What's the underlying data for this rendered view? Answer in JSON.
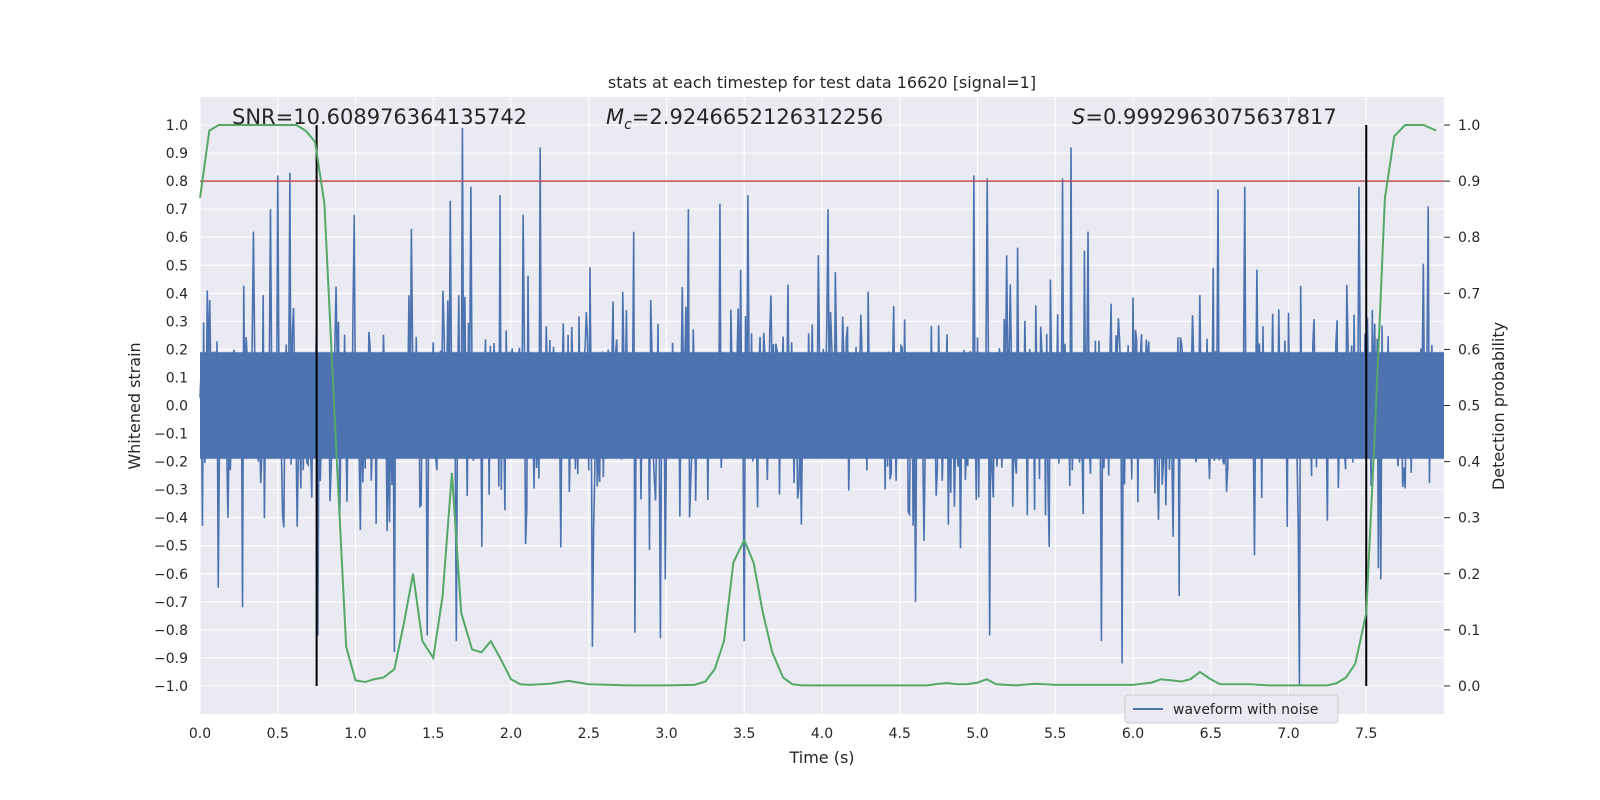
{
  "chart_data": {
    "type": "line",
    "title": "stats at each timestep for test data 16620 [signal=1]",
    "xlabel": "Time (s)",
    "ylabel_left": "Whitened strain",
    "ylabel_right": "Detection probability",
    "xlim": [
      0,
      8
    ],
    "ylim_left": [
      -1.1,
      1.1
    ],
    "ylim_right": [
      -0.05,
      1.05
    ],
    "x_ticks": [
      "0.0",
      "0.5",
      "1.0",
      "1.5",
      "2.0",
      "2.5",
      "3.0",
      "3.5",
      "4.0",
      "4.5",
      "5.0",
      "5.5",
      "6.0",
      "6.5",
      "7.0",
      "7.5"
    ],
    "x_tick_values": [
      0,
      0.5,
      1,
      1.5,
      2,
      2.5,
      3,
      3.5,
      4,
      4.5,
      5,
      5.5,
      6,
      6.5,
      7,
      7.5
    ],
    "y_left_ticks": [
      "1.0",
      "0.9",
      "0.8",
      "0.7",
      "0.6",
      "0.5",
      "0.4",
      "0.3",
      "0.2",
      "0.1",
      "0.0",
      "−0.1",
      "−0.2",
      "−0.3",
      "−0.4",
      "−0.5",
      "−0.6",
      "−0.7",
      "−0.8",
      "−0.9",
      "−1.0"
    ],
    "y_left_tick_values": [
      1.0,
      0.9,
      0.8,
      0.7,
      0.6,
      0.5,
      0.4,
      0.3,
      0.2,
      0.1,
      0.0,
      -0.1,
      -0.2,
      -0.3,
      -0.4,
      -0.5,
      -0.6,
      -0.7,
      -0.8,
      -0.9,
      -1.0
    ],
    "y_right_ticks": [
      "1.0",
      "0.9",
      "0.8",
      "0.7",
      "0.6",
      "0.5",
      "0.4",
      "0.3",
      "0.2",
      "0.1",
      "0.0"
    ],
    "y_right_tick_values": [
      1.0,
      0.9,
      0.8,
      0.7,
      0.6,
      0.5,
      0.4,
      0.3,
      0.2,
      0.1,
      0.0
    ],
    "annotations": {
      "snr": "SNR=10.608976364135742",
      "mc_symbol": "M",
      "mc_subscript": "c",
      "mc_value": "=2.9246652126312256",
      "s_symbol": "S",
      "s_value": "=0.9992963075637817"
    },
    "threshold": {
      "value": 0.9,
      "axis": "right",
      "color": "#c44e52"
    },
    "vertical_markers": [
      0.75,
      7.5
    ],
    "legend": {
      "label": "waveform with noise",
      "location": "lower-right"
    },
    "series": [
      {
        "name": "waveform with noise",
        "axis": "left",
        "color": "#4c72b0",
        "seed": 16620,
        "samples": 1024,
        "noise_sigma": 0.2,
        "peaks": [
          {
            "t": 0.5,
            "v": 0.82
          },
          {
            "t": 0.58,
            "v": 0.83
          },
          {
            "t": 0.34,
            "v": 0.62
          },
          {
            "t": 0.45,
            "v": 0.7
          },
          {
            "t": 0.99,
            "v": 0.68
          },
          {
            "t": 1.36,
            "v": 0.63
          },
          {
            "t": 1.61,
            "v": 0.73
          },
          {
            "t": 1.69,
            "v": 0.99
          },
          {
            "t": 1.74,
            "v": 0.78
          },
          {
            "t": 1.93,
            "v": 0.75
          },
          {
            "t": 2.19,
            "v": 0.92
          },
          {
            "t": 2.08,
            "v": 0.68
          },
          {
            "t": 3.14,
            "v": 0.7
          },
          {
            "t": 3.34,
            "v": 0.72
          },
          {
            "t": 3.52,
            "v": 0.75
          },
          {
            "t": 4.04,
            "v": 0.7
          },
          {
            "t": 4.98,
            "v": 0.82
          },
          {
            "t": 5.06,
            "v": 0.81
          },
          {
            "t": 5.55,
            "v": 0.81
          },
          {
            "t": 5.6,
            "v": 0.92
          },
          {
            "t": 6.55,
            "v": 0.77
          },
          {
            "t": 6.72,
            "v": 0.78
          },
          {
            "t": 7.45,
            "v": 0.78
          },
          {
            "t": 7.9,
            "v": 0.71
          },
          {
            "t": 0.27,
            "v": -0.72
          },
          {
            "t": 0.76,
            "v": -0.82
          },
          {
            "t": 1.25,
            "v": -0.88
          },
          {
            "t": 1.46,
            "v": -0.82
          },
          {
            "t": 1.65,
            "v": -0.84
          },
          {
            "t": 2.52,
            "v": -0.86
          },
          {
            "t": 2.8,
            "v": -0.81
          },
          {
            "t": 2.96,
            "v": -0.83
          },
          {
            "t": 3.5,
            "v": -0.84
          },
          {
            "t": 5.08,
            "v": -0.82
          },
          {
            "t": 5.8,
            "v": -0.84
          },
          {
            "t": 5.93,
            "v": -0.92
          },
          {
            "t": 7.07,
            "v": -1.0
          },
          {
            "t": 0.12,
            "v": -0.65
          },
          {
            "t": 4.6,
            "v": -0.7
          },
          {
            "t": 6.3,
            "v": -0.68
          }
        ]
      },
      {
        "name": "detection probability",
        "axis": "right",
        "color": "#55a868",
        "x": [
          0.0,
          0.06,
          0.12,
          0.25,
          0.5,
          0.62,
          0.68,
          0.74,
          0.8,
          0.88,
          0.94,
          1.0,
          1.06,
          1.12,
          1.18,
          1.25,
          1.31,
          1.37,
          1.43,
          1.5,
          1.56,
          1.62,
          1.68,
          1.75,
          1.81,
          1.87,
          1.93,
          2.0,
          2.06,
          2.12,
          2.25,
          2.37,
          2.5,
          2.75,
          3.0,
          3.18,
          3.25,
          3.31,
          3.37,
          3.43,
          3.5,
          3.56,
          3.62,
          3.68,
          3.75,
          3.81,
          3.87,
          4.0,
          4.5,
          4.68,
          4.75,
          4.81,
          4.87,
          4.93,
          5.0,
          5.06,
          5.12,
          5.18,
          5.25,
          5.37,
          5.5,
          6.0,
          6.12,
          6.18,
          6.25,
          6.31,
          6.37,
          6.43,
          6.5,
          6.56,
          6.62,
          6.75,
          6.87,
          7.0,
          7.25,
          7.31,
          7.37,
          7.43,
          7.5,
          7.56,
          7.62,
          7.68,
          7.75,
          7.87,
          7.95
        ],
        "y": [
          0.87,
          0.99,
          1.0,
          1.0,
          1.0,
          1.0,
          0.99,
          0.97,
          0.86,
          0.4,
          0.07,
          0.01,
          0.007,
          0.012,
          0.015,
          0.03,
          0.11,
          0.2,
          0.08,
          0.05,
          0.16,
          0.38,
          0.13,
          0.065,
          0.06,
          0.08,
          0.05,
          0.012,
          0.003,
          0.002,
          0.004,
          0.009,
          0.003,
          0.001,
          0.001,
          0.002,
          0.008,
          0.03,
          0.08,
          0.22,
          0.26,
          0.22,
          0.13,
          0.06,
          0.015,
          0.003,
          0.001,
          0.001,
          0.001,
          0.001,
          0.004,
          0.005,
          0.003,
          0.003,
          0.006,
          0.012,
          0.003,
          0.002,
          0.001,
          0.004,
          0.002,
          0.002,
          0.006,
          0.012,
          0.01,
          0.008,
          0.012,
          0.025,
          0.012,
          0.003,
          0.003,
          0.003,
          0.001,
          0.001,
          0.001,
          0.005,
          0.015,
          0.04,
          0.13,
          0.48,
          0.87,
          0.98,
          1.0,
          1.0,
          0.99
        ]
      }
    ]
  }
}
